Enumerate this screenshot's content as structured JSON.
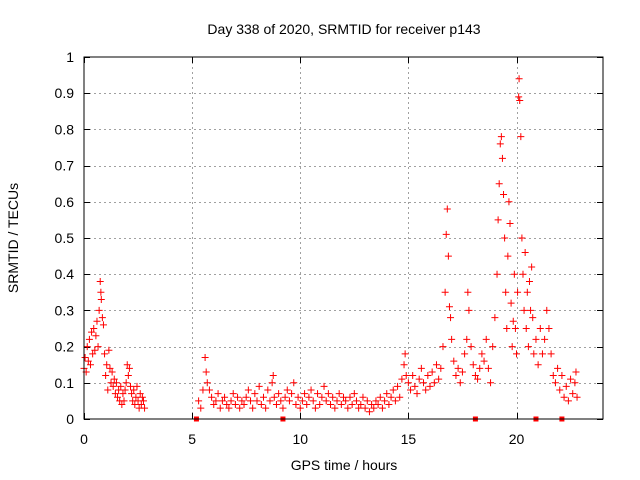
{
  "chart_data": {
    "type": "scatter",
    "title": "Day 338 of 2020, SRMTID for receiver p143",
    "xlabel": "GPS time / hours",
    "ylabel": "SRMTID / TECUs",
    "xlim": [
      0,
      24
    ],
    "ylim": [
      0,
      1
    ],
    "grid": true,
    "marker": "+",
    "color": "#ff0000",
    "xticks": [
      {
        "value": 0,
        "label": "0"
      },
      {
        "value": 5,
        "label": "5"
      },
      {
        "value": 10,
        "label": "10"
      },
      {
        "value": 15,
        "label": "15"
      },
      {
        "value": 20,
        "label": "20"
      }
    ],
    "yticks": [
      {
        "value": 0,
        "label": "0"
      },
      {
        "value": 0.1,
        "label": "0.1"
      },
      {
        "value": 0.2,
        "label": "0.2"
      },
      {
        "value": 0.3,
        "label": "0.3"
      },
      {
        "value": 0.4,
        "label": "0.4"
      },
      {
        "value": 0.5,
        "label": "0.5"
      },
      {
        "value": 0.6,
        "label": "0.6"
      },
      {
        "value": 0.7,
        "label": "0.7"
      },
      {
        "value": 0.8,
        "label": "0.8"
      },
      {
        "value": 0.9,
        "label": "0.9"
      },
      {
        "value": 1,
        "label": "1"
      }
    ],
    "baseline_markers_x": [
      5.2,
      9.2,
      18.1,
      20.9,
      22.1
    ],
    "series": [
      {
        "name": "p143",
        "points": [
          [
            0.0,
            0.14
          ],
          [
            0.05,
            0.17
          ],
          [
            0.1,
            0.13
          ],
          [
            0.15,
            0.2
          ],
          [
            0.2,
            0.16
          ],
          [
            0.25,
            0.22
          ],
          [
            0.3,
            0.15
          ],
          [
            0.35,
            0.24
          ],
          [
            0.4,
            0.18
          ],
          [
            0.45,
            0.25
          ],
          [
            0.5,
            0.19
          ],
          [
            0.55,
            0.23
          ],
          [
            0.6,
            0.27
          ],
          [
            0.65,
            0.2
          ],
          [
            0.7,
            0.3
          ],
          [
            0.75,
            0.38
          ],
          [
            0.78,
            0.35
          ],
          [
            0.8,
            0.33
          ],
          [
            0.85,
            0.28
          ],
          [
            0.9,
            0.26
          ],
          [
            0.95,
            0.18
          ],
          [
            1.0,
            0.12
          ],
          [
            1.05,
            0.15
          ],
          [
            1.1,
            0.08
          ],
          [
            1.15,
            0.19
          ],
          [
            1.2,
            0.14
          ],
          [
            1.25,
            0.1
          ],
          [
            1.3,
            0.13
          ],
          [
            1.35,
            0.09
          ],
          [
            1.4,
            0.11
          ],
          [
            1.45,
            0.07
          ],
          [
            1.5,
            0.1
          ],
          [
            1.55,
            0.06
          ],
          [
            1.6,
            0.08
          ],
          [
            1.65,
            0.05
          ],
          [
            1.7,
            0.09
          ],
          [
            1.75,
            0.04
          ],
          [
            1.8,
            0.07
          ],
          [
            1.85,
            0.05
          ],
          [
            1.9,
            0.08
          ],
          [
            1.95,
            0.1
          ],
          [
            2.0,
            0.15
          ],
          [
            2.05,
            0.12
          ],
          [
            2.1,
            0.14
          ],
          [
            2.15,
            0.09
          ],
          [
            2.2,
            0.07
          ],
          [
            2.25,
            0.05
          ],
          [
            2.3,
            0.08
          ],
          [
            2.35,
            0.04
          ],
          [
            2.4,
            0.06
          ],
          [
            2.45,
            0.09
          ],
          [
            2.5,
            0.05
          ],
          [
            2.55,
            0.03
          ],
          [
            2.6,
            0.07
          ],
          [
            2.65,
            0.04
          ],
          [
            2.7,
            0.06
          ],
          [
            2.75,
            0.05
          ],
          [
            2.8,
            0.03
          ],
          [
            5.3,
            0.05
          ],
          [
            5.4,
            0.03
          ],
          [
            5.5,
            0.08
          ],
          [
            5.6,
            0.17
          ],
          [
            5.65,
            0.13
          ],
          [
            5.7,
            0.1
          ],
          [
            5.8,
            0.08
          ],
          [
            5.9,
            0.06
          ],
          [
            6.0,
            0.04
          ],
          [
            6.1,
            0.05
          ],
          [
            6.2,
            0.07
          ],
          [
            6.3,
            0.03
          ],
          [
            6.4,
            0.05
          ],
          [
            6.5,
            0.06
          ],
          [
            6.6,
            0.04
          ],
          [
            6.7,
            0.03
          ],
          [
            6.8,
            0.05
          ],
          [
            6.9,
            0.07
          ],
          [
            7.0,
            0.04
          ],
          [
            7.1,
            0.06
          ],
          [
            7.2,
            0.03
          ],
          [
            7.3,
            0.05
          ],
          [
            7.4,
            0.04
          ],
          [
            7.5,
            0.06
          ],
          [
            7.6,
            0.08
          ],
          [
            7.7,
            0.05
          ],
          [
            7.8,
            0.03
          ],
          [
            7.9,
            0.07
          ],
          [
            8.0,
            0.05
          ],
          [
            8.1,
            0.09
          ],
          [
            8.2,
            0.04
          ],
          [
            8.3,
            0.06
          ],
          [
            8.4,
            0.03
          ],
          [
            8.5,
            0.08
          ],
          [
            8.6,
            0.05
          ],
          [
            8.7,
            0.1
          ],
          [
            8.75,
            0.12
          ],
          [
            8.8,
            0.06
          ],
          [
            8.9,
            0.04
          ],
          [
            9.0,
            0.07
          ],
          [
            9.1,
            0.05
          ],
          [
            9.2,
            0.03
          ],
          [
            9.3,
            0.06
          ],
          [
            9.4,
            0.08
          ],
          [
            9.5,
            0.05
          ],
          [
            9.6,
            0.07
          ],
          [
            9.7,
            0.1
          ],
          [
            9.8,
            0.04
          ],
          [
            9.9,
            0.06
          ],
          [
            10.0,
            0.03
          ],
          [
            10.1,
            0.05
          ],
          [
            10.2,
            0.07
          ],
          [
            10.3,
            0.04
          ],
          [
            10.4,
            0.06
          ],
          [
            10.5,
            0.08
          ],
          [
            10.6,
            0.05
          ],
          [
            10.7,
            0.03
          ],
          [
            10.8,
            0.07
          ],
          [
            10.9,
            0.04
          ],
          [
            11.0,
            0.06
          ],
          [
            11.1,
            0.09
          ],
          [
            11.2,
            0.05
          ],
          [
            11.3,
            0.07
          ],
          [
            11.4,
            0.04
          ],
          [
            11.5,
            0.06
          ],
          [
            11.6,
            0.03
          ],
          [
            11.7,
            0.05
          ],
          [
            11.8,
            0.07
          ],
          [
            11.9,
            0.04
          ],
          [
            12.0,
            0.06
          ],
          [
            12.1,
            0.05
          ],
          [
            12.2,
            0.03
          ],
          [
            12.3,
            0.06
          ],
          [
            12.4,
            0.04
          ],
          [
            12.5,
            0.07
          ],
          [
            12.6,
            0.05
          ],
          [
            12.7,
            0.03
          ],
          [
            12.8,
            0.04
          ],
          [
            12.9,
            0.06
          ],
          [
            13.0,
            0.03
          ],
          [
            13.1,
            0.05
          ],
          [
            13.2,
            0.02
          ],
          [
            13.3,
            0.04
          ],
          [
            13.4,
            0.03
          ],
          [
            13.5,
            0.05
          ],
          [
            13.6,
            0.04
          ],
          [
            13.7,
            0.06
          ],
          [
            13.8,
            0.03
          ],
          [
            13.9,
            0.05
          ],
          [
            14.0,
            0.07
          ],
          [
            14.1,
            0.04
          ],
          [
            14.2,
            0.06
          ],
          [
            14.3,
            0.08
          ],
          [
            14.4,
            0.05
          ],
          [
            14.5,
            0.09
          ],
          [
            14.6,
            0.06
          ],
          [
            14.7,
            0.11
          ],
          [
            14.8,
            0.15
          ],
          [
            14.85,
            0.18
          ],
          [
            14.9,
            0.12
          ],
          [
            15.0,
            0.1
          ],
          [
            15.1,
            0.08
          ],
          [
            15.2,
            0.12
          ],
          [
            15.3,
            0.09
          ],
          [
            15.4,
            0.07
          ],
          [
            15.5,
            0.11
          ],
          [
            15.6,
            0.14
          ],
          [
            15.7,
            0.1
          ],
          [
            15.8,
            0.08
          ],
          [
            15.9,
            0.12
          ],
          [
            16.0,
            0.09
          ],
          [
            16.1,
            0.13
          ],
          [
            16.2,
            0.1
          ],
          [
            16.3,
            0.15
          ],
          [
            16.4,
            0.11
          ],
          [
            16.5,
            0.14
          ],
          [
            16.6,
            0.2
          ],
          [
            16.7,
            0.35
          ],
          [
            16.75,
            0.51
          ],
          [
            16.8,
            0.58
          ],
          [
            16.85,
            0.45
          ],
          [
            16.9,
            0.31
          ],
          [
            16.95,
            0.28
          ],
          [
            17.0,
            0.22
          ],
          [
            17.1,
            0.16
          ],
          [
            17.2,
            0.12
          ],
          [
            17.3,
            0.14
          ],
          [
            17.4,
            0.1
          ],
          [
            17.5,
            0.13
          ],
          [
            17.6,
            0.18
          ],
          [
            17.7,
            0.22
          ],
          [
            17.75,
            0.35
          ],
          [
            17.8,
            0.3
          ],
          [
            17.9,
            0.2
          ],
          [
            18.0,
            0.15
          ],
          [
            18.1,
            0.12
          ],
          [
            18.2,
            0.11
          ],
          [
            18.3,
            0.14
          ],
          [
            18.4,
            0.18
          ],
          [
            18.5,
            0.16
          ],
          [
            18.6,
            0.22
          ],
          [
            18.7,
            0.14
          ],
          [
            18.8,
            0.1
          ],
          [
            18.9,
            0.2
          ],
          [
            19.0,
            0.28
          ],
          [
            19.1,
            0.4
          ],
          [
            19.15,
            0.55
          ],
          [
            19.2,
            0.65
          ],
          [
            19.25,
            0.76
          ],
          [
            19.3,
            0.78
          ],
          [
            19.35,
            0.72
          ],
          [
            19.4,
            0.62
          ],
          [
            19.45,
            0.5
          ],
          [
            19.5,
            0.35
          ],
          [
            19.55,
            0.25
          ],
          [
            19.6,
            0.45
          ],
          [
            19.65,
            0.6
          ],
          [
            19.7,
            0.54
          ],
          [
            19.75,
            0.32
          ],
          [
            19.8,
            0.2
          ],
          [
            19.85,
            0.27
          ],
          [
            19.9,
            0.4
          ],
          [
            19.95,
            0.25
          ],
          [
            20.0,
            0.18
          ],
          [
            20.05,
            0.35
          ],
          [
            20.1,
            0.89
          ],
          [
            20.12,
            0.94
          ],
          [
            20.15,
            0.88
          ],
          [
            20.2,
            0.78
          ],
          [
            20.25,
            0.5
          ],
          [
            20.3,
            0.4
          ],
          [
            20.35,
            0.3
          ],
          [
            20.4,
            0.46
          ],
          [
            20.45,
            0.25
          ],
          [
            20.5,
            0.35
          ],
          [
            20.55,
            0.2
          ],
          [
            20.6,
            0.38
          ],
          [
            20.65,
            0.3
          ],
          [
            20.7,
            0.42
          ],
          [
            20.75,
            0.28
          ],
          [
            20.8,
            0.18
          ],
          [
            20.9,
            0.22
          ],
          [
            21.0,
            0.15
          ],
          [
            21.1,
            0.25
          ],
          [
            21.2,
            0.18
          ],
          [
            21.3,
            0.22
          ],
          [
            21.4,
            0.3
          ],
          [
            21.5,
            0.25
          ],
          [
            21.6,
            0.18
          ],
          [
            21.7,
            0.12
          ],
          [
            21.8,
            0.1
          ],
          [
            21.9,
            0.14
          ],
          [
            22.0,
            0.08
          ],
          [
            22.1,
            0.12
          ],
          [
            22.2,
            0.06
          ],
          [
            22.3,
            0.09
          ],
          [
            22.4,
            0.05
          ],
          [
            22.5,
            0.11
          ],
          [
            22.6,
            0.07
          ],
          [
            22.7,
            0.1
          ],
          [
            22.75,
            0.13
          ],
          [
            22.8,
            0.06
          ]
        ]
      }
    ]
  }
}
